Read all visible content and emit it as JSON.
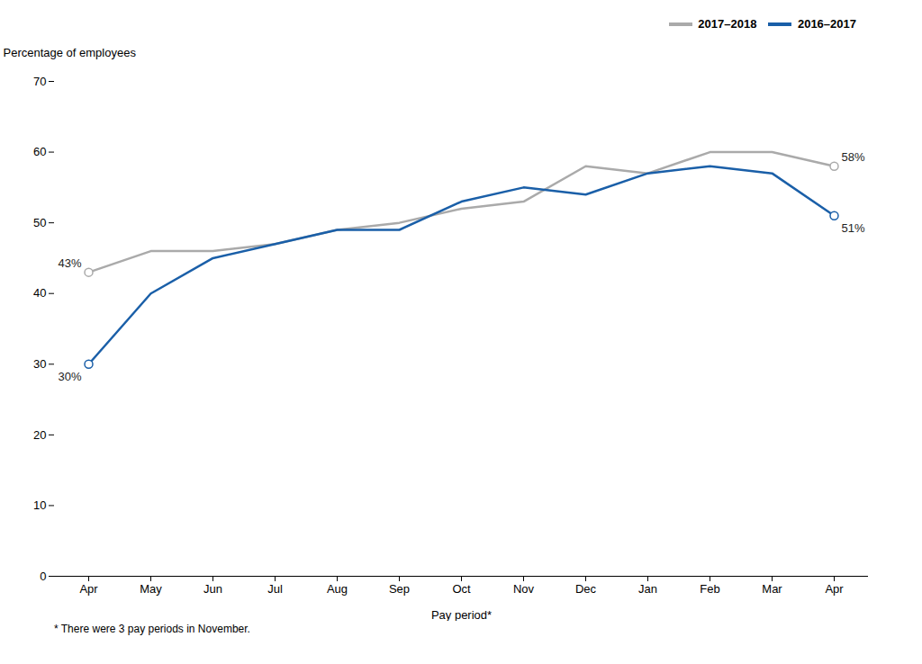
{
  "chart_data": {
    "type": "line",
    "xlabel": "Pay period*",
    "ylabel": "Percentage of employees",
    "caption": "* There were 3 pay periods in November.",
    "categories": [
      "Apr",
      "May",
      "Jun",
      "Jul",
      "Aug",
      "Sep",
      "Oct",
      "Nov",
      "Dec",
      "Jan",
      "Feb",
      "Mar",
      "Apr"
    ],
    "series": [
      {
        "name": "2017–2018",
        "color": "#aaaaaa",
        "values": [
          43,
          46,
          46,
          47,
          49,
          50,
          52,
          53,
          58,
          57,
          60,
          60,
          58
        ],
        "value_labels": [
          "43%",
          null,
          null,
          null,
          null,
          null,
          null,
          null,
          null,
          null,
          null,
          null,
          "58%"
        ]
      },
      {
        "name": "2016–2017",
        "color": "#1a5fa8",
        "values": [
          30,
          40,
          45,
          47,
          49,
          49,
          53,
          55,
          54,
          57,
          58,
          57,
          51
        ],
        "value_labels": [
          "30%",
          null,
          null,
          null,
          null,
          null,
          null,
          null,
          null,
          null,
          null,
          null,
          "51%"
        ]
      }
    ],
    "ylim": [
      0,
      70
    ],
    "yticks": [
      0,
      10,
      20,
      30,
      40,
      50,
      60,
      70
    ],
    "grid": false,
    "legend": "top"
  }
}
